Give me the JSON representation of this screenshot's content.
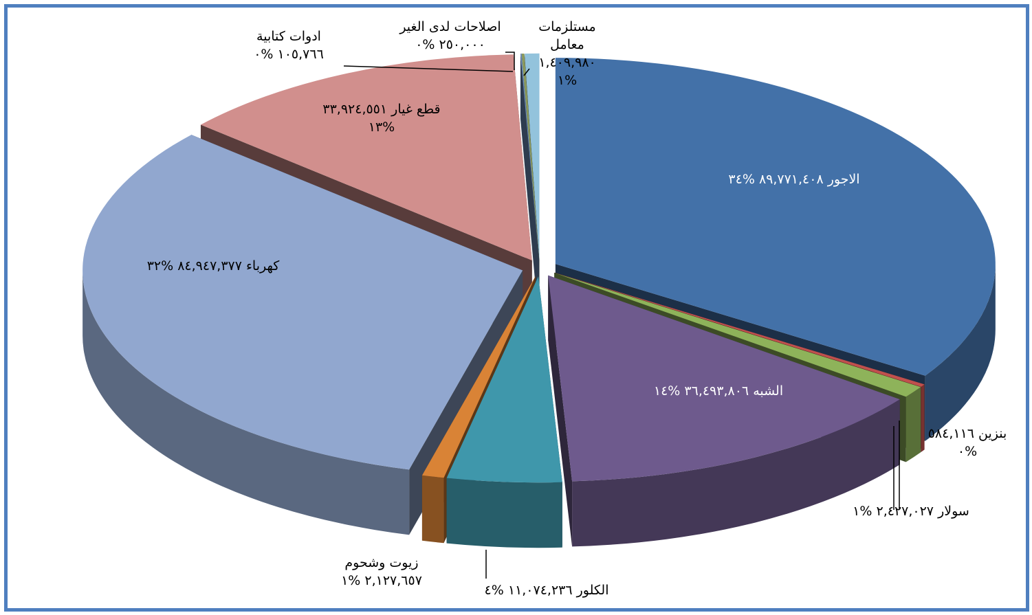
{
  "chart_data": {
    "type": "pie",
    "title": "",
    "three_d": true,
    "exploded": true,
    "legend": "none",
    "series": [
      {
        "slices": [
          {
            "label": "الاجور",
            "value": 89771408,
            "value_text": "٨٩,٧٧١,٤٠٨",
            "percent_text": "%٣٤",
            "color": "#4371a8"
          },
          {
            "label": "بنزين",
            "value": 584116,
            "value_text": "٥٨٤,١١٦",
            "percent_text": "%٠",
            "color": "#c0504d"
          },
          {
            "label": "سولار",
            "value": 2427027,
            "value_text": "٢,٤٢٧,٠٢٧",
            "percent_text": "%١",
            "color": "#8eb35a"
          },
          {
            "label": "الشبه",
            "value": 36493806,
            "value_text": "٣٦,٤٩٣,٨٠٦",
            "percent_text": "%١٤",
            "color": "#6e5a8d"
          },
          {
            "label": "الكلور",
            "value": 11074236,
            "value_text": "١١,٠٧٤,٢٣٦",
            "percent_text": "%٤",
            "color": "#3f97ab"
          },
          {
            "label": "زيوت وشحوم",
            "value": 2127657,
            "value_text": "٢,١٢٧,٦٥٧",
            "percent_text": "%١",
            "color": "#d98336"
          },
          {
            "label": "كهرباء",
            "value": 84947377,
            "value_text": "٨٤,٩٤٧,٣٧٧",
            "percent_text": "%٣٢",
            "color": "#91a7cf"
          },
          {
            "label": "قطع غيار",
            "value": 33924551,
            "value_text": "٣٣,٩٢٤,٥٥١",
            "percent_text": "%١٣",
            "color": "#d18f8d"
          },
          {
            "label": "ادوات كتابية",
            "value": 105766,
            "value_text": "١٠٥,٧٦٦",
            "percent_text": "%٠",
            "color": "#6d8ebd"
          },
          {
            "label": "اصلاحات لدى الغير",
            "value": 250000,
            "value_text": "٢٥٠,٠٠٠",
            "percent_text": "%٠",
            "color": "#8b9a5c"
          },
          {
            "label": "مستلزمات معامل",
            "value": 1409980,
            "value_text": "١,٤٠٩,٩٨٠",
            "percent_text": "%١",
            "color": "#93c3dc"
          }
        ]
      }
    ]
  }
}
